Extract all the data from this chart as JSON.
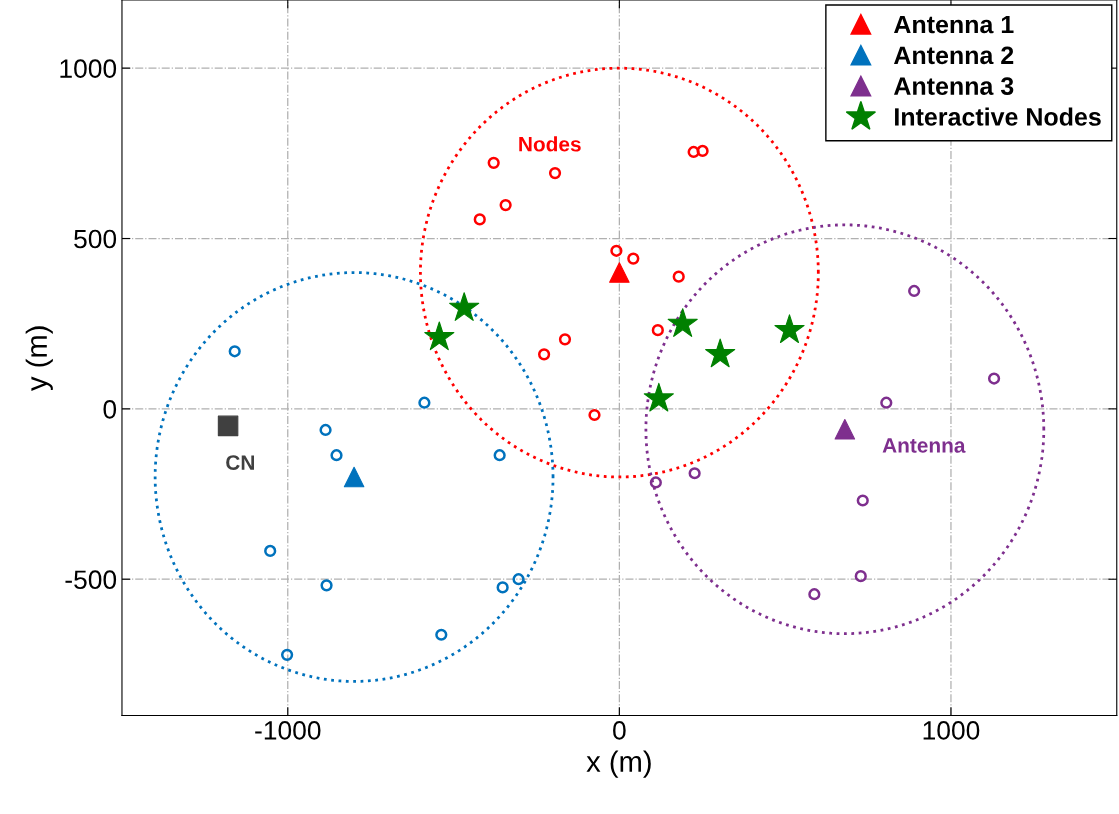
{
  "chart_data": {
    "type": "scatter",
    "xlabel": "x (m)",
    "ylabel": "y (m)",
    "xlim": [
      -1500,
      1500
    ],
    "ylim": [
      -900,
      1200
    ],
    "xticks": [
      -1000,
      0,
      1000
    ],
    "yticks": [
      -500,
      0,
      500,
      1000
    ],
    "grid": true,
    "legend": "top right",
    "series": [
      {
        "marker": "circle",
        "color": "#ff0000",
        "x": [
          -379,
          -194,
          -343,
          -421,
          224,
          251,
          -9,
          42,
          179,
          116,
          -164,
          -227,
          -75
        ],
        "values": [
          722,
          692,
          598,
          556,
          754,
          757,
          464,
          441,
          388,
          231,
          204,
          160,
          -18
        ]
      },
      {
        "marker": "circle",
        "color": "#0072bd",
        "x": [
          -1160,
          -588,
          -886,
          -853,
          -361,
          -1053,
          -883,
          -352,
          -304,
          -537,
          -1002
        ],
        "values": [
          169,
          18,
          -62,
          -136,
          -136,
          -417,
          -518,
          -524,
          -500,
          -663,
          -722
        ]
      },
      {
        "marker": "circle",
        "color": "#7e2f8e",
        "x": [
          889,
          1130,
          805,
          110,
          227,
          734,
          728,
          588
        ],
        "values": [
          346,
          89,
          18,
          -216,
          -189,
          -269,
          -491,
          -544
        ]
      },
      {
        "marker": "square",
        "color": "#404040",
        "x": [
          -1180
        ],
        "values": [
          -50
        ]
      },
      {
        "marker": "triangle",
        "name": "Antenna 1",
        "color": "#ff0000",
        "x": [
          0
        ],
        "values": [
          400
        ]
      },
      {
        "marker": "triangle",
        "name": "Antenna 2",
        "color": "#0072bd",
        "x": [
          -800
        ],
        "values": [
          -200
        ]
      },
      {
        "marker": "triangle",
        "name": "Antenna 3",
        "color": "#7e2f8e",
        "x": [
          680
        ],
        "values": [
          -60
        ]
      },
      {
        "marker": "star",
        "name": "Interactive Nodes",
        "color": "#008000",
        "x": [
          -468,
          -543,
          191,
          304,
          513,
          119
        ],
        "values": [
          296,
          210,
          249,
          160,
          231,
          30
        ]
      }
    ],
    "annotations": [
      "Nodes",
      "CN",
      "Antenna"
    ]
  }
}
